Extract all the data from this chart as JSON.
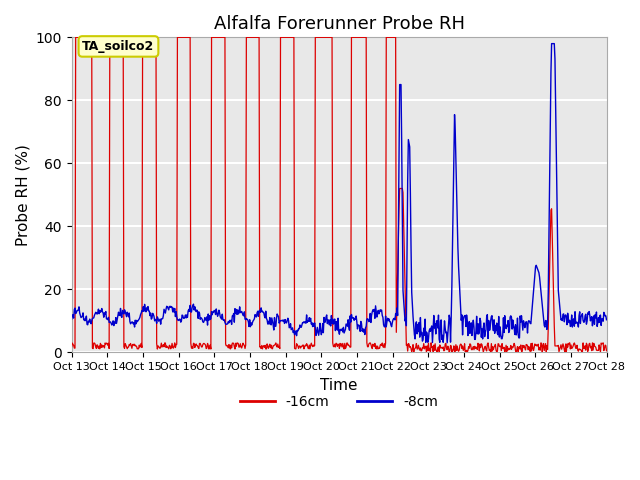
{
  "title": "Alfalfa Forerunner Probe RH",
  "xlabel": "Time",
  "ylabel": "Probe RH (%)",
  "ylim": [
    0,
    100
  ],
  "xtick_labels": [
    "Oct 13",
    "Oct 14",
    "Oct 15",
    "Oct 16",
    "Oct 17",
    "Oct 18",
    "Oct 19",
    "Oct 20",
    "Oct 21",
    "Oct 22",
    "Oct 23",
    "Oct 24",
    "Oct 25",
    "Oct 26",
    "Oct 27",
    "Oct 28"
  ],
  "legend_label1": "-16cm",
  "legend_label2": "-8cm",
  "color1": "#dd0000",
  "color2": "#0000cc",
  "annotation_text": "TA_soilco2",
  "background_color": "#ffffff",
  "plot_bg_color": "#e8e8e8",
  "grid_color": "#ffffff",
  "title_fontsize": 13,
  "axis_fontsize": 11
}
